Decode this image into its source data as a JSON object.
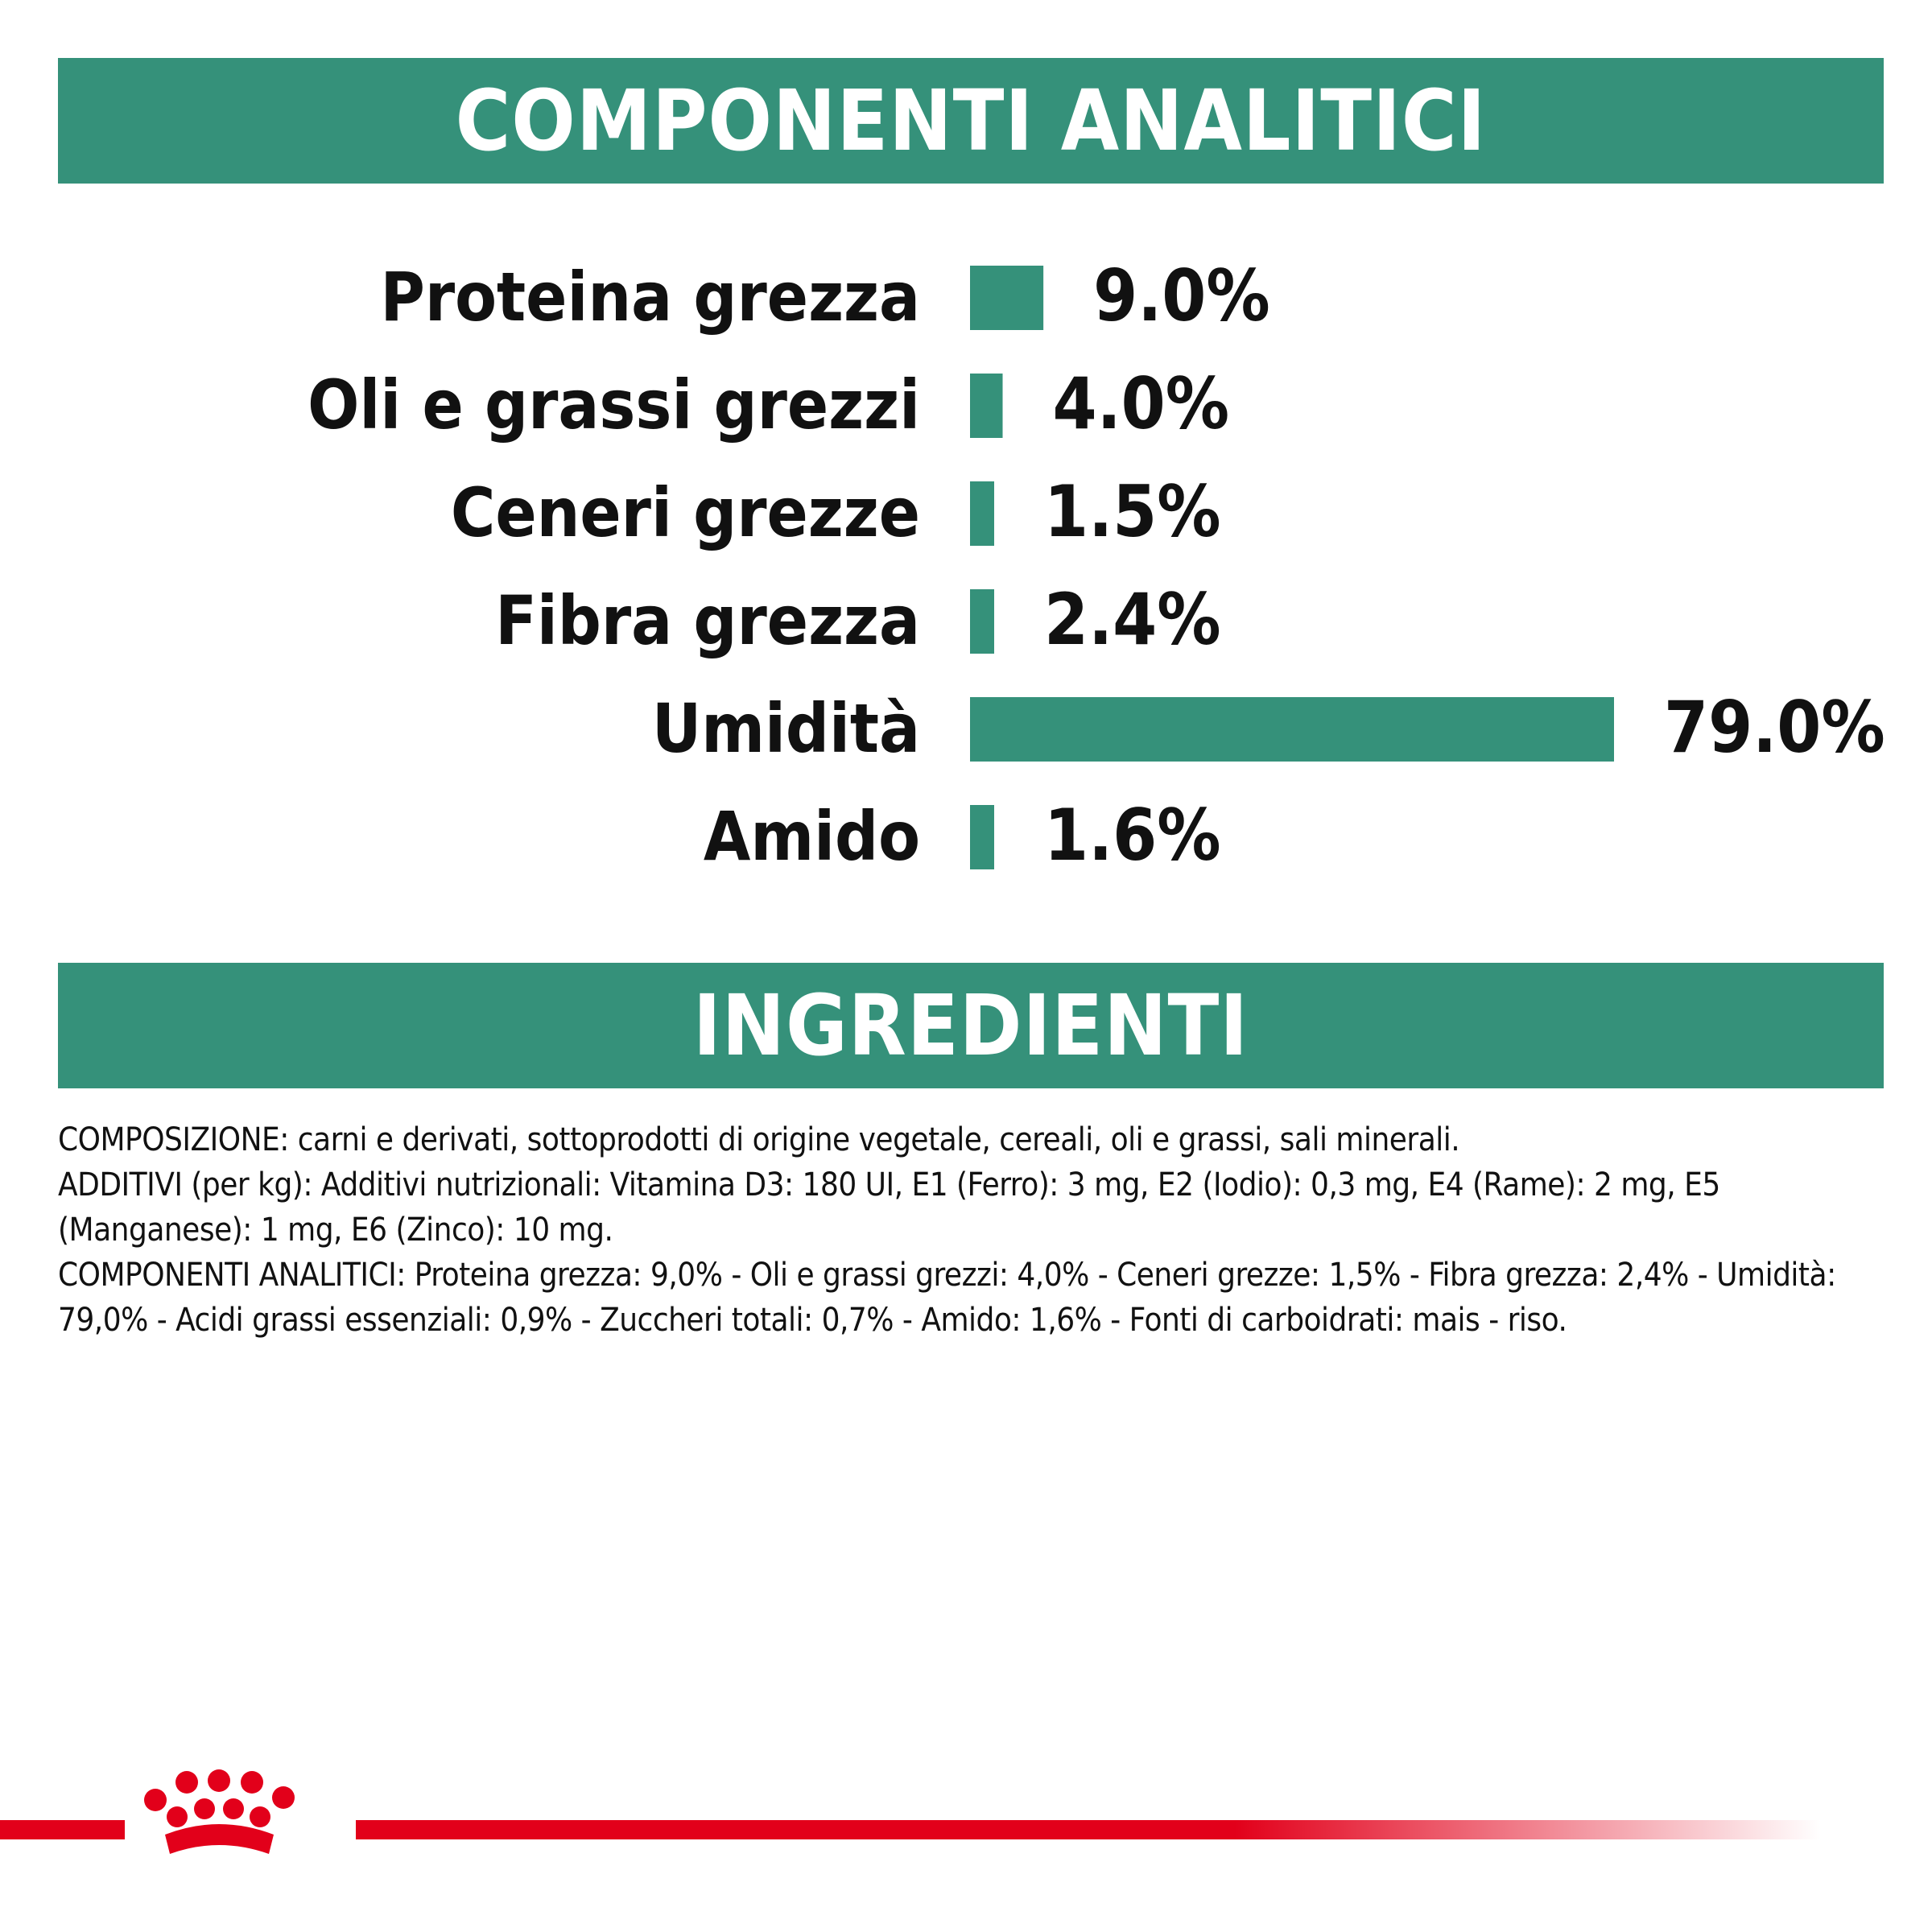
{
  "colors": {
    "accent": "#35917A",
    "brand_red": "#E2001A",
    "text": "#111111"
  },
  "headers": {
    "components": "COMPONENTI ANALITICI",
    "ingredients": "INGREDIENTI"
  },
  "chart_data": {
    "type": "bar",
    "orientation": "horizontal",
    "title": "COMPONENTI ANALITICI",
    "categories": [
      "Proteina grezza",
      "Oli e grassi grezzi",
      "Ceneri grezze",
      "Fibra grezza",
      "Umidità",
      "Amido"
    ],
    "values": [
      9.0,
      4.0,
      1.5,
      2.4,
      79.0,
      1.6
    ],
    "value_labels": [
      "9.0%",
      "4.0%",
      "1.5%",
      "2.4%",
      "79.0%",
      "1.6%"
    ],
    "unit": "%",
    "xlim": [
      0,
      79
    ],
    "grid": false,
    "legend": "none"
  },
  "ingredients": {
    "composition": "COMPOSIZIONE: carni e derivati, sottoprodotti di origine vegetale, cereali, oli e grassi, sali minerali.",
    "additives": "ADDITIVI (per kg): Additivi nutrizionali: Vitamina D3: 180 UI, E1 (Ferro): 3 mg, E2 (Iodio): 0,3 mg, E4 (Rame): 2 mg, E5 (Manganese): 1 mg, E6 (Zinco): 10 mg.",
    "analytical": "COMPONENTI ANALITICI: Proteina grezza: 9,0% - Oli e grassi grezzi: 4,0% - Ceneri grezze: 1,5% - Fibra grezza: 2,4% - Umidità: 79,0% - Acidi grassi essenziali: 0,9% - Zuccheri totali: 0,7% - Amido: 1,6% - Fonti di carboidrati: mais - riso."
  },
  "footer": {
    "logo_icon": "royal-canin-crown-icon"
  }
}
